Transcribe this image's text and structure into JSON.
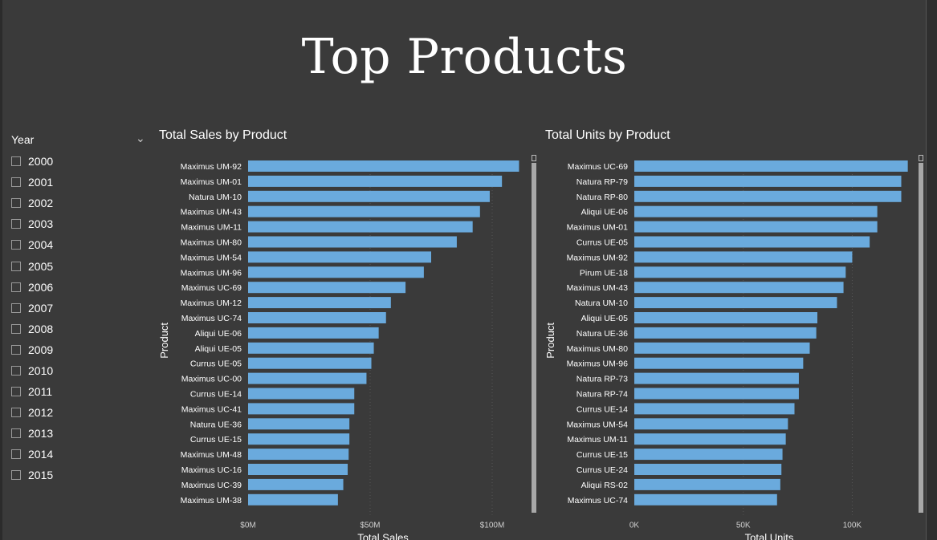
{
  "page": {
    "title": "Top Products"
  },
  "slicer": {
    "title": "Year",
    "items": [
      "2000",
      "2001",
      "2002",
      "2003",
      "2004",
      "2005",
      "2006",
      "2007",
      "2008",
      "2009",
      "2010",
      "2011",
      "2012",
      "2013",
      "2014",
      "2015"
    ]
  },
  "colors": {
    "bar": "#6aaadd",
    "background": "#3a3a3a",
    "text": "#ffffff",
    "tick": "#d0d0d0",
    "grid": "#555555"
  },
  "chart_data": [
    {
      "type": "bar",
      "orientation": "horizontal",
      "title": "Total Sales by Product",
      "xlabel": "Total Sales",
      "ylabel": "Product",
      "xlim": [
        0,
        125000000
      ],
      "xticks": [
        0,
        50000000,
        100000000
      ],
      "xtick_labels": [
        "$0M",
        "$50M",
        "$100M"
      ],
      "grid": true,
      "categories": [
        "Maximus UM-92",
        "Maximus UM-01",
        "Natura UM-10",
        "Maximus UM-43",
        "Maximus UM-11",
        "Maximus UM-80",
        "Maximus UM-54",
        "Maximus UM-96",
        "Maximus UC-69",
        "Maximus UM-12",
        "Maximus UC-74",
        "Aliqui UE-06",
        "Aliqui UE-05",
        "Currus UE-05",
        "Maximus UC-00",
        "Currus UE-14",
        "Maximus UC-41",
        "Natura UE-36",
        "Currus UE-15",
        "Maximus UM-48",
        "Maximus UC-16",
        "Maximus UC-39",
        "Maximus UM-38"
      ],
      "values": [
        111000000,
        104000000,
        99000000,
        95000000,
        92000000,
        85500000,
        75000000,
        72000000,
        64500000,
        58500000,
        56500000,
        53500000,
        51500000,
        50500000,
        48500000,
        43500000,
        43500000,
        41500000,
        41500000,
        41200000,
        40800000,
        39000000,
        36800000
      ]
    },
    {
      "type": "bar",
      "orientation": "horizontal",
      "title": "Total Units by Product",
      "xlabel": "Total Units",
      "ylabel": "Product",
      "xlim": [
        0,
        140000
      ],
      "xticks": [
        0,
        50000,
        100000
      ],
      "xtick_labels": [
        "0K",
        "50K",
        "100K"
      ],
      "grid": true,
      "categories": [
        "Maximus UC-69",
        "Natura RP-79",
        "Natura RP-80",
        "Aliqui UE-06",
        "Maximus UM-01",
        "Currus UE-05",
        "Maximus UM-92",
        "Pirum UE-18",
        "Maximus UM-43",
        "Natura UM-10",
        "Aliqui UE-05",
        "Natura UE-36",
        "Maximus UM-80",
        "Maximus UM-96",
        "Natura RP-73",
        "Natura RP-74",
        "Currus UE-14",
        "Maximus UM-54",
        "Maximus UM-11",
        "Currus UE-15",
        "Currus UE-24",
        "Aliqui RS-02",
        "Maximus UC-74"
      ],
      "values": [
        125500,
        122500,
        122500,
        111500,
        111500,
        108000,
        100000,
        97000,
        96000,
        93000,
        84000,
        83500,
        80500,
        77500,
        75500,
        75500,
        73500,
        70500,
        69500,
        68000,
        67500,
        67000,
        65500
      ]
    }
  ]
}
